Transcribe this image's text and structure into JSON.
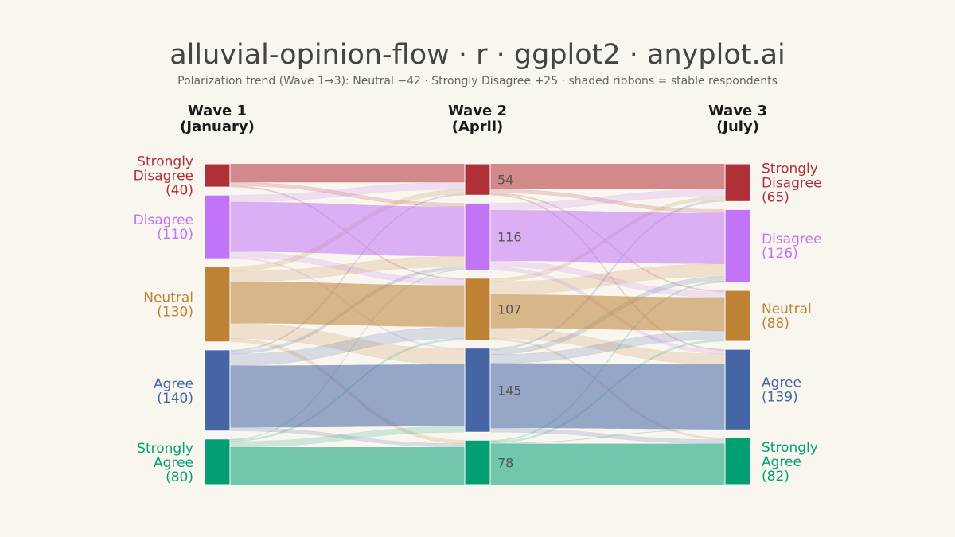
{
  "chart_data": {
    "type": "alluvial",
    "title": "alluvial-opinion-flow · r · ggplot2 · anyplot.ai",
    "subtitle": "Polarization trend (Wave 1→3): Neutral −42  ·  Strongly Disagree +25  ·  shaded ribbons = stable respondents",
    "waves": [
      {
        "label": [
          "Wave 1",
          "(January)"
        ]
      },
      {
        "label": [
          "Wave 2",
          "(April)"
        ]
      },
      {
        "label": [
          "Wave 3",
          "(July)"
        ]
      }
    ],
    "categories": [
      {
        "name": [
          "Strongly",
          "Disagree"
        ],
        "color": "#b03038"
      },
      {
        "name": [
          "Disagree"
        ],
        "color": "#c174f6"
      },
      {
        "name": [
          "Neutral"
        ],
        "color": "#bd8234"
      },
      {
        "name": [
          "Agree"
        ],
        "color": "#4565a5"
      },
      {
        "name": [
          "Strongly",
          "Agree"
        ],
        "color": "#039e72"
      }
    ],
    "totals": [
      [
        40,
        110,
        130,
        140,
        80
      ],
      [
        54,
        116,
        107,
        145,
        78
      ],
      [
        65,
        126,
        88,
        139,
        82
      ]
    ],
    "flows": [
      [
        [
          32,
          6,
          2,
          0,
          0
        ],
        [
          12,
          86,
          10,
          2,
          0
        ],
        [
          8,
          18,
          72,
          26,
          6
        ],
        [
          2,
          5,
          20,
          107,
          6
        ],
        [
          0,
          1,
          3,
          10,
          66
        ]
      ],
      [
        [
          44,
          6,
          2,
          2,
          0
        ],
        [
          12,
          88,
          10,
          6,
          0
        ],
        [
          6,
          22,
          58,
          18,
          3
        ],
        [
          3,
          8,
          15,
          112,
          7
        ],
        [
          0,
          2,
          3,
          1,
          72
        ]
      ]
    ],
    "stable_ribbons_shaded": true
  }
}
